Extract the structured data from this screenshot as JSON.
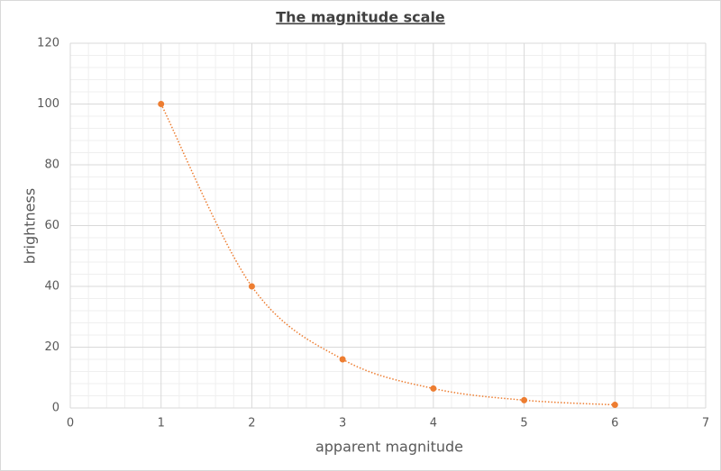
{
  "chart_data": {
    "type": "scatter",
    "title": "The magnitude scale",
    "x_label": "apparent magnitude",
    "y_label": "brightness",
    "series": [
      {
        "name": "brightness",
        "color": "#ed7d31",
        "x": [
          1,
          2,
          3,
          4,
          5,
          6
        ],
        "values": [
          100,
          40,
          16,
          6.4,
          2.56,
          1.02
        ]
      }
    ],
    "xlim": [
      0,
      7
    ],
    "xticks": [
      0,
      1,
      2,
      3,
      4,
      5,
      6,
      7
    ],
    "ylim": [
      0,
      120
    ],
    "yticks": [
      0,
      20,
      40,
      60,
      80,
      100,
      120
    ],
    "grid": true,
    "minor_grid": true,
    "smooth": true
  }
}
